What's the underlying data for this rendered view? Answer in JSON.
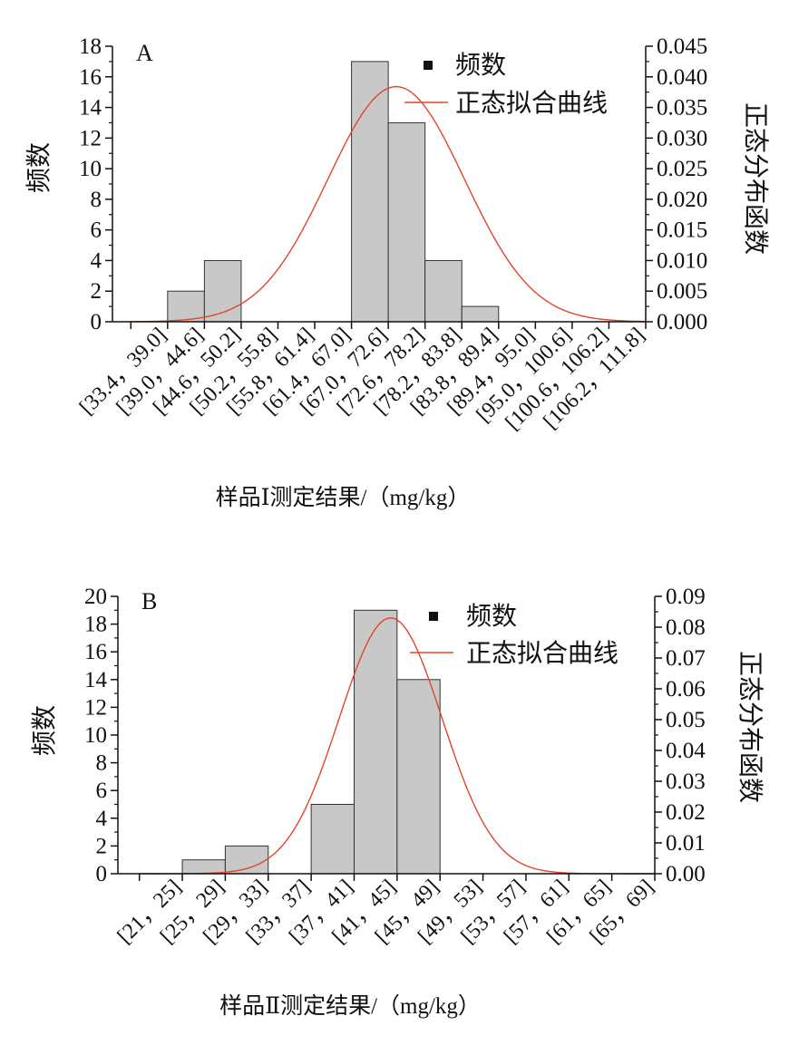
{
  "chart_data": [
    {
      "type": "bar",
      "panel_label": "A",
      "title": "",
      "xlabel": "样品Ⅰ测定结果/（mg/kg）",
      "ylabel": "频数",
      "ylabel_right": "正态分布函数",
      "categories": [
        "[33.4, 39.0]",
        "[39.0, 44.6]",
        "[44.6, 50.2]",
        "[50.2, 55.8]",
        "[55.8, 61.4]",
        "[61.4, 67.0]",
        "[67.0, 72.6]",
        "[72.6, 78.2]",
        "[78.2, 83.8]",
        "[83.8, 89.4]",
        "[89.4, 95.0]",
        "[95.0, 100.6]",
        "[100.6, 106.2]",
        "[106.2, 111.8]"
      ],
      "tick_labels": [
        "[33.4，39.0]",
        "[39.0，44.6]",
        "[44.6，50.2]",
        "[50.2，55.8]",
        "[55.8，61.4]",
        "[61.4，67.0]",
        "[67.0，72.6]",
        "[72.6，78.2]",
        "[78.2，83.8]",
        "[83.8，89.4]",
        "[89.4，95.0]",
        "[95.0，100.6]",
        "[100.6，106.2]",
        "[106.2，111.8]"
      ],
      "series": [
        {
          "name": "频数",
          "values": [
            0,
            2,
            4,
            0,
            0,
            0,
            17,
            13,
            4,
            1,
            0,
            0,
            0,
            0
          ]
        },
        {
          "name": "正态拟合曲线",
          "curve_type": "normal_fit",
          "mean": 73.8,
          "sd": 10.4,
          "peak": 0.0384
        }
      ],
      "ylim": [
        0,
        18
      ],
      "yticks": [
        0,
        2,
        4,
        6,
        8,
        10,
        12,
        14,
        16,
        18
      ],
      "ylim_right": [
        0,
        0.045
      ],
      "yticks_right": [
        "0.000",
        "0.005",
        "0.010",
        "0.015",
        "0.020",
        "0.025",
        "0.030",
        "0.035",
        "0.040",
        "0.045"
      ],
      "legend_position": "top-right",
      "bar_color": "#c8c8c8",
      "curve_color": "#e0472a"
    },
    {
      "type": "bar",
      "panel_label": "B",
      "title": "",
      "xlabel": "样品Ⅱ测定结果/（mg/kg）",
      "ylabel": "频数",
      "ylabel_right": "正态分布函数",
      "categories": [
        "[21, 25]",
        "[25, 29]",
        "[29, 33]",
        "[33, 37]",
        "[37, 41]",
        "[41, 45]",
        "[45, 49]",
        "[49, 53]",
        "[53, 57]",
        "[57, 61]",
        "[61, 65]",
        "[65, 69]"
      ],
      "tick_labels": [
        "[21，25]",
        "[25，29]",
        "[29，33]",
        "[33，37]",
        "[37，41]",
        "[41，45]",
        "[45，49]",
        "[49，53]",
        "[53，57]",
        "[57，61]",
        "[61，65]",
        "[65，69]"
      ],
      "series": [
        {
          "name": "频数",
          "values": [
            0,
            1,
            2,
            0,
            5,
            19,
            14,
            0,
            0,
            0,
            0,
            0
          ]
        },
        {
          "name": "正态拟合曲线",
          "curve_type": "normal_fit",
          "mean": 44.4,
          "sd": 4.8,
          "peak": 0.083
        }
      ],
      "ylim": [
        0,
        20
      ],
      "yticks": [
        0,
        2,
        4,
        6,
        8,
        10,
        12,
        14,
        16,
        18,
        20
      ],
      "ylim_right": [
        0,
        0.09
      ],
      "yticks_right": [
        "0.00",
        "0.01",
        "0.02",
        "0.03",
        "0.04",
        "0.05",
        "0.06",
        "0.07",
        "0.08",
        "0.09"
      ],
      "legend_position": "top-right",
      "bar_color": "#c8c8c8",
      "curve_color": "#e0472a"
    }
  ]
}
